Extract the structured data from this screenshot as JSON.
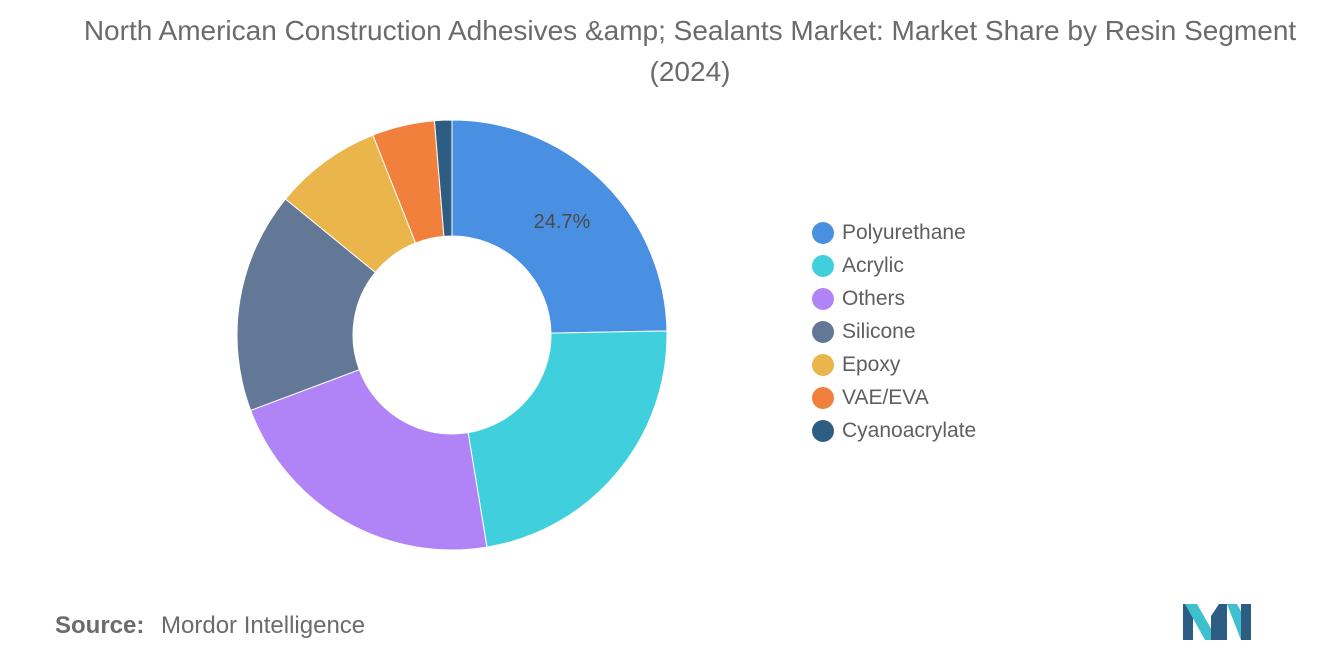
{
  "title": "North American Construction Adhesives &amp; Sealants Market: Market Share by Resin Segment (2024)",
  "chart_data": {
    "type": "pie",
    "style": "donut",
    "categories": [
      "Polyurethane",
      "Acrylic",
      "Others",
      "Silicone",
      "Epoxy",
      "VAE/EVA",
      "Cyanoacrylate"
    ],
    "values": [
      24.7,
      22.7,
      21.9,
      16.6,
      8.1,
      4.7,
      1.3
    ],
    "colors": [
      "#4a90e2",
      "#40d0dd",
      "#b084f6",
      "#637896",
      "#eab54a",
      "#f0803c",
      "#2e5d84"
    ],
    "data_labels": [
      {
        "series_index": 0,
        "text": "24.7%"
      }
    ],
    "legend_position": "right"
  },
  "legend": {
    "items": [
      {
        "label": "Polyurethane",
        "color": "#4a90e2"
      },
      {
        "label": "Acrylic",
        "color": "#40d0dd"
      },
      {
        "label": "Others",
        "color": "#b084f6"
      },
      {
        "label": "Silicone",
        "color": "#637896"
      },
      {
        "label": "Epoxy",
        "color": "#eab54a"
      },
      {
        "label": "VAE/EVA",
        "color": "#f0803c"
      },
      {
        "label": "Cyanoacrylate",
        "color": "#2e5d84"
      }
    ]
  },
  "source": {
    "label": "Source:",
    "text": "Mordor Intelligence"
  },
  "logo": {
    "icon": "mordor-intelligence-logo-icon",
    "colors": [
      "#2e5d84",
      "#40c0cf"
    ]
  }
}
